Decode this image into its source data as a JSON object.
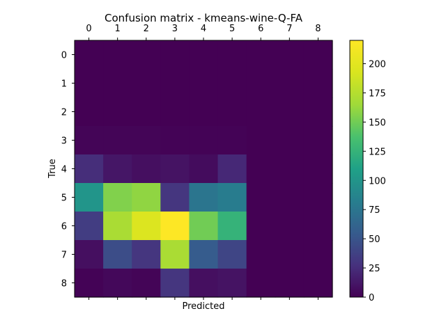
{
  "chart_data": {
    "type": "heatmap",
    "title": "Confusion matrix - kmeans-wine-Q-FA",
    "xlabel": "Predicted",
    "ylabel": "True",
    "x_categories": [
      "0",
      "1",
      "2",
      "3",
      "4",
      "5",
      "6",
      "7",
      "8"
    ],
    "y_categories": [
      "0",
      "1",
      "2",
      "3",
      "4",
      "5",
      "6",
      "7",
      "8"
    ],
    "matrix": [
      [
        0,
        0,
        0,
        0,
        0,
        0,
        0,
        0,
        0
      ],
      [
        0,
        0,
        0,
        0,
        0,
        0,
        0,
        0,
        0
      ],
      [
        0,
        0,
        0,
        0,
        0,
        0,
        0,
        0,
        0
      ],
      [
        2,
        2,
        2,
        1,
        1,
        1,
        0,
        0,
        0
      ],
      [
        25,
        12,
        8,
        10,
        6,
        22,
        0,
        0,
        0
      ],
      [
        100,
        155,
        160,
        30,
        75,
        80,
        0,
        0,
        0
      ],
      [
        35,
        170,
        195,
        220,
        150,
        125,
        0,
        0,
        0
      ],
      [
        8,
        45,
        30,
        170,
        55,
        40,
        0,
        0,
        0
      ],
      [
        1,
        4,
        2,
        30,
        8,
        10,
        0,
        0,
        0
      ]
    ],
    "colorbar": {
      "colormap": "viridis",
      "range": [
        0,
        220
      ],
      "ticks": [
        "0",
        "25",
        "50",
        "75",
        "100",
        "125",
        "150",
        "175",
        "200"
      ]
    }
  }
}
